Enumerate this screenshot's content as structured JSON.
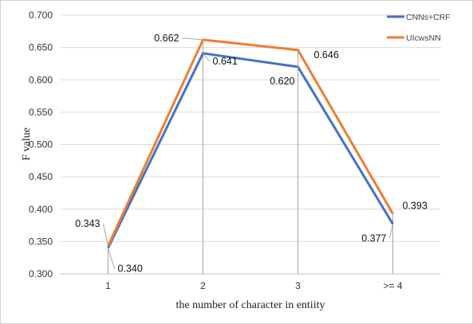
{
  "chart_data": {
    "type": "line",
    "xlabel": "the number of character in entiity",
    "ylabel": "F value",
    "categories": [
      "1",
      "2",
      "3",
      ">= 4"
    ],
    "ylim": [
      0.3,
      0.7
    ],
    "yticks": [
      "0.300",
      "0.350",
      "0.400",
      "0.450",
      "0.500",
      "0.550",
      "0.600",
      "0.650",
      "0.700"
    ],
    "grid": true,
    "legend_position": "top-right",
    "series": [
      {
        "name": "CNNs+CRF",
        "color": "#4472C4",
        "values": [
          0.34,
          0.641,
          0.62,
          0.377
        ],
        "labels": [
          "0.340",
          "0.641",
          "0.620",
          "0.377"
        ]
      },
      {
        "name": "UIcwsNN",
        "color": "#ED7D31",
        "values": [
          0.343,
          0.662,
          0.646,
          0.393
        ],
        "labels": [
          "0.343",
          "0.662",
          "0.646",
          "0.393"
        ]
      }
    ]
  }
}
